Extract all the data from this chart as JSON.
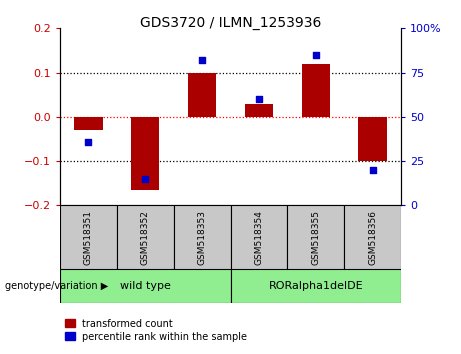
{
  "title": "GDS3720 / ILMN_1253936",
  "categories": [
    "GSM518351",
    "GSM518352",
    "GSM518353",
    "GSM518354",
    "GSM518355",
    "GSM518356"
  ],
  "red_values": [
    -0.03,
    -0.165,
    0.098,
    0.03,
    0.12,
    -0.1
  ],
  "blue_values": [
    36,
    15,
    82,
    60,
    85,
    20
  ],
  "ylim_left": [
    -0.2,
    0.2
  ],
  "ylim_right": [
    0,
    100
  ],
  "yticks_left": [
    -0.2,
    -0.1,
    0.0,
    0.1,
    0.2
  ],
  "yticks_right": [
    0,
    25,
    50,
    75,
    100
  ],
  "group1_label": "wild type",
  "group2_label": "RORalpha1delDE",
  "group1_indices": [
    0,
    1,
    2
  ],
  "group2_indices": [
    3,
    4,
    5
  ],
  "group_color": "#90EE90",
  "sample_box_color": "#C8C8C8",
  "bar_color": "#AA0000",
  "dot_color": "#0000CC",
  "label_color_left": "#CC0000",
  "label_color_right": "#0000CC",
  "legend_red": "transformed count",
  "legend_blue": "percentile rank within the sample",
  "genotype_label": "genotype/variation",
  "bar_width": 0.5
}
